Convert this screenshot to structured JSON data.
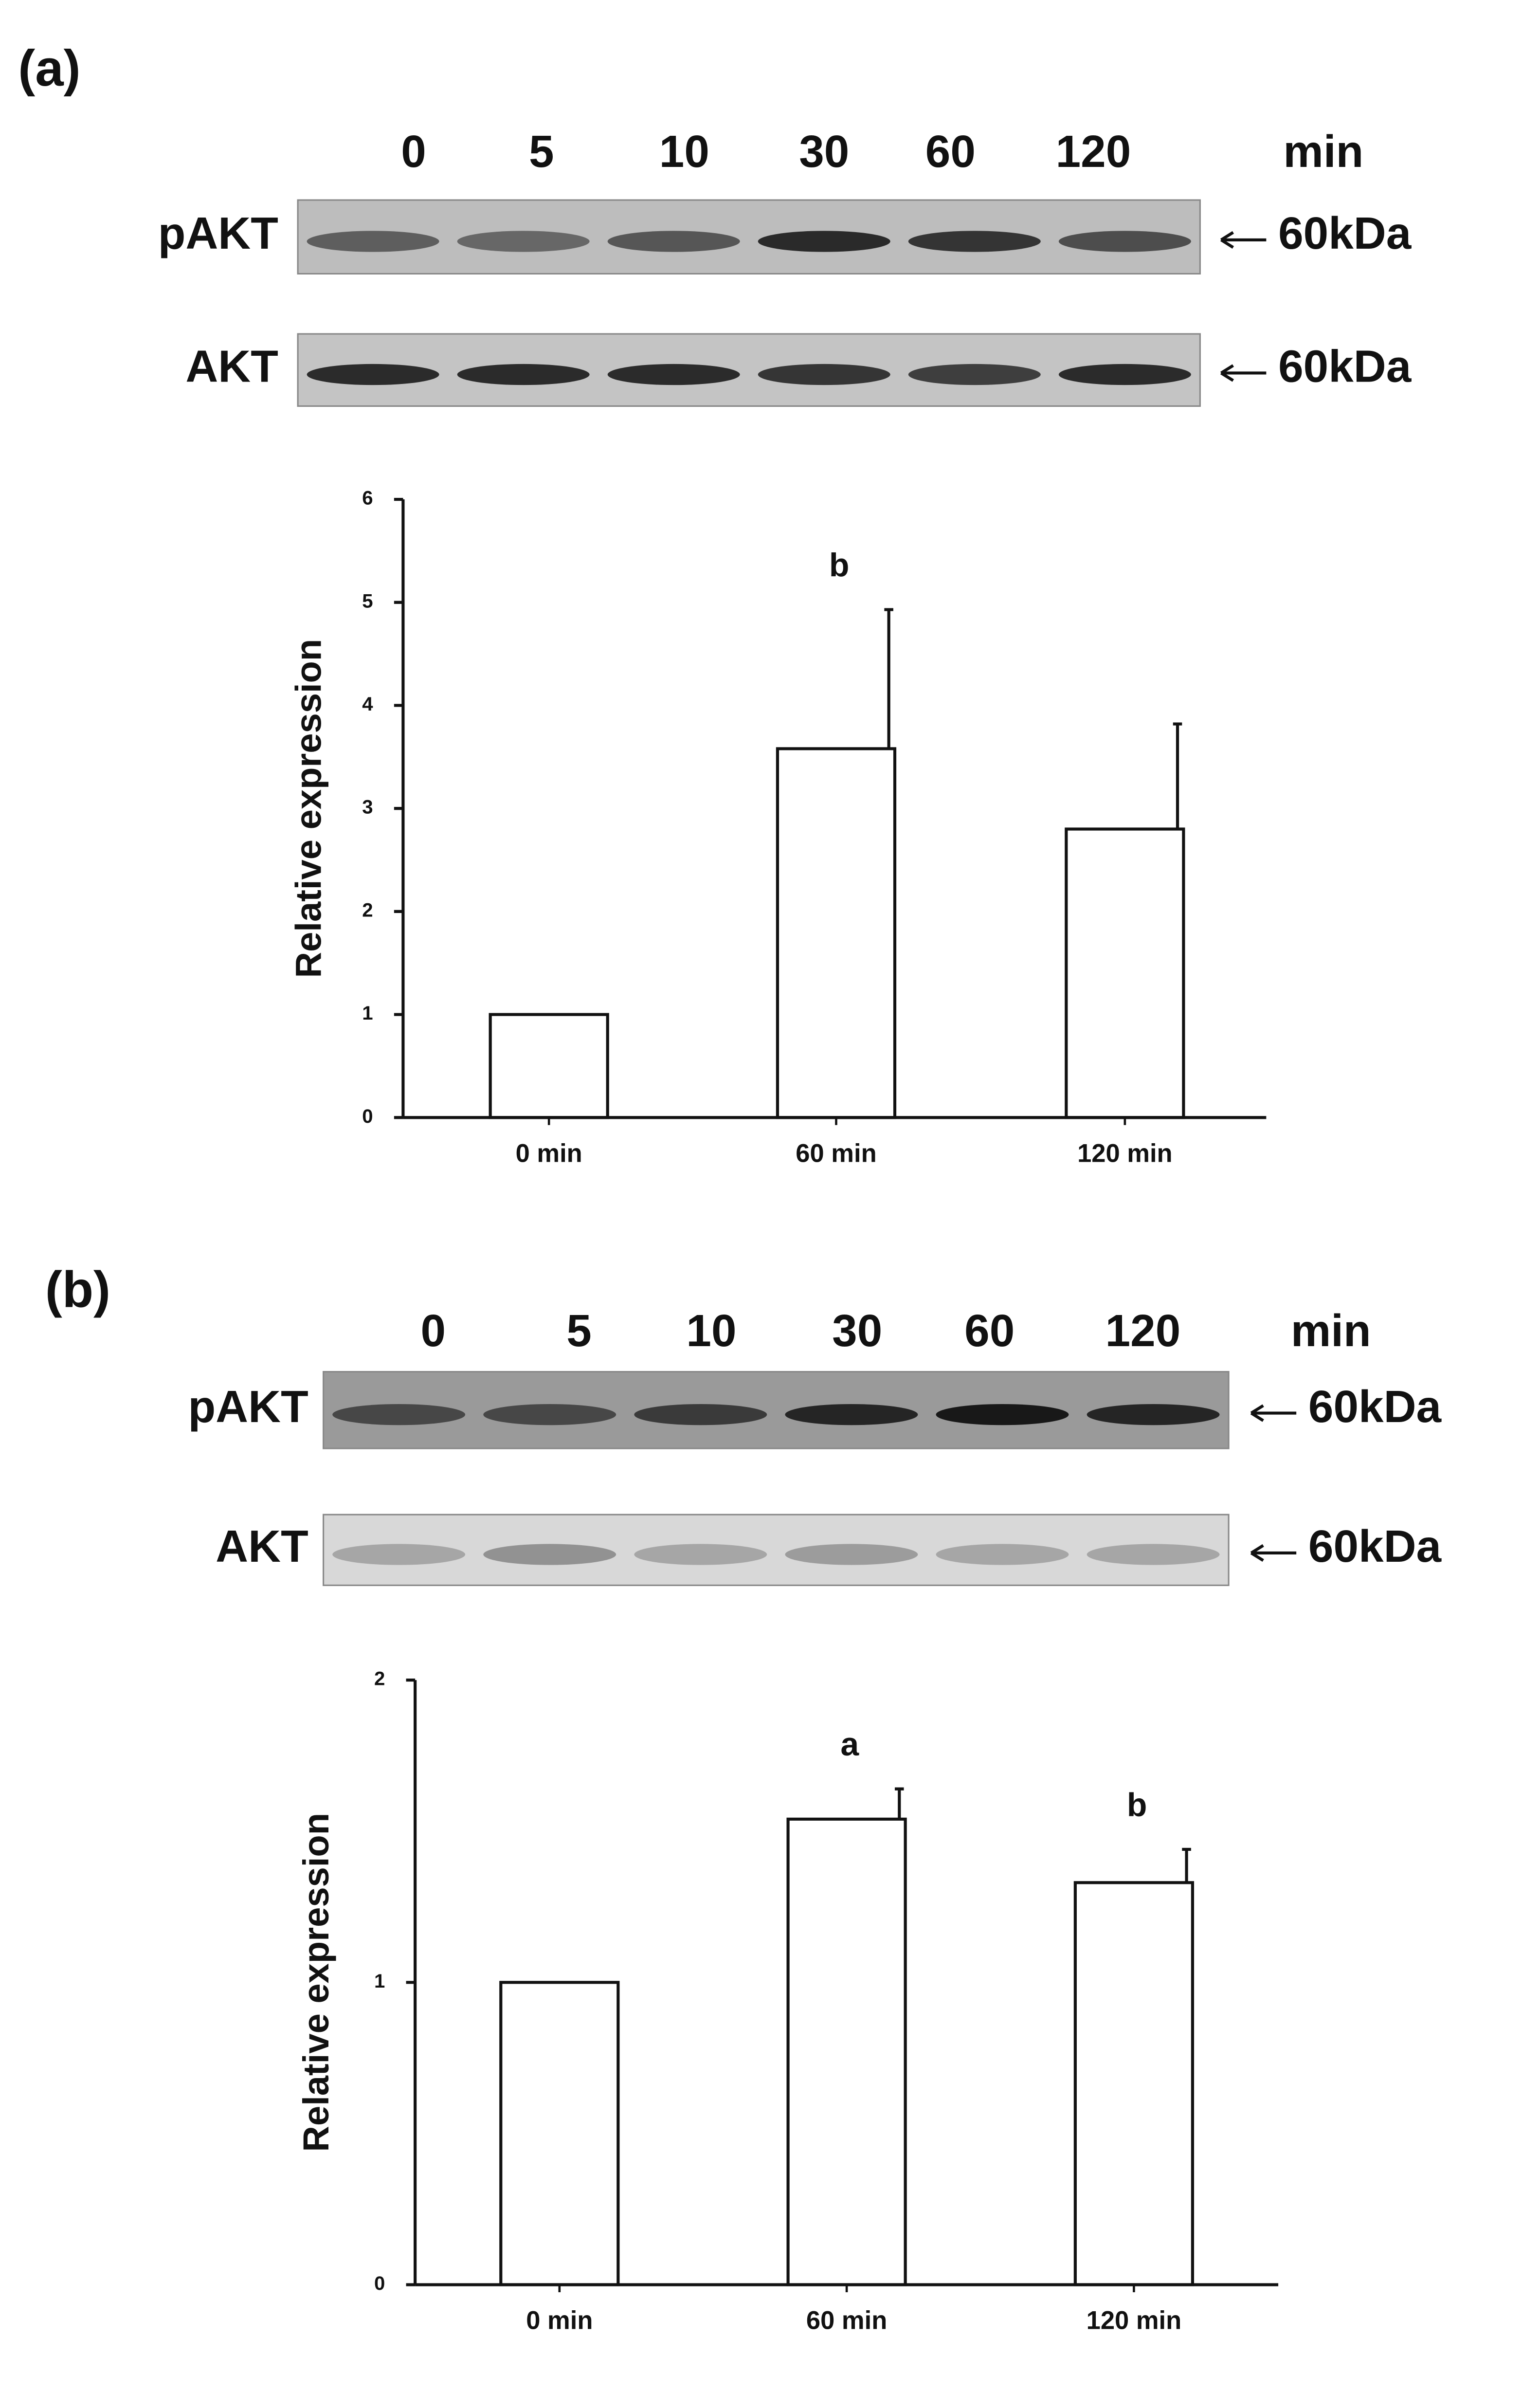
{
  "blots": [
    {
      "panel_label": "(a)",
      "lanes": [
        "0",
        "5",
        "10",
        "30",
        "60",
        "120"
      ],
      "unit": "min",
      "rows": [
        {
          "name": "pAKT",
          "size": "60kDa"
        },
        {
          "name": "AKT",
          "size": "60kDa"
        }
      ]
    },
    {
      "panel_label": "(b)",
      "lanes": [
        "0",
        "5",
        "10",
        "30",
        "60",
        "120"
      ],
      "unit": "min",
      "rows": [
        {
          "name": "pAKT",
          "size": "60kDa"
        },
        {
          "name": "AKT",
          "size": "60kDa"
        }
      ]
    }
  ],
  "chart_data": [
    {
      "type": "bar",
      "y_label": "Relative expression",
      "categories": [
        "0 min",
        "60 min",
        "120 min"
      ],
      "values": [
        1,
        3.58,
        2.8
      ],
      "errors": [
        null,
        1.35,
        1.02
      ],
      "color": "#ffffff",
      "ylim": [
        0,
        6
      ],
      "yticks": [
        0,
        1,
        2,
        3,
        4,
        5,
        6
      ],
      "annotations": [
        {
          "text": "b",
          "x": "60 min"
        }
      ]
    },
    {
      "type": "bar",
      "y_label": "Relative expression",
      "categories": [
        "0 min",
        "60 min",
        "120 min"
      ],
      "values": [
        1,
        1.54,
        1.33
      ],
      "errors": [
        null,
        0.1,
        0.11
      ],
      "color": "#ffffff",
      "ylim": [
        0,
        2
      ],
      "yticks": [
        0,
        1,
        2
      ],
      "annotations": [
        {
          "text": "a",
          "x": "60 min"
        },
        {
          "text": "b",
          "x": "120 min"
        }
      ]
    }
  ]
}
